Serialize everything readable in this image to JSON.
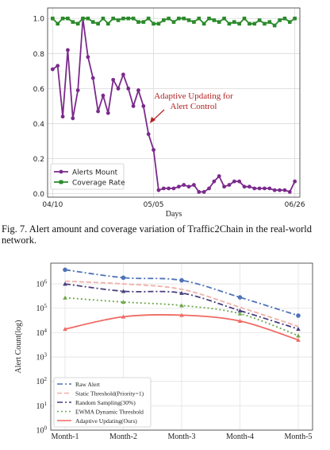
{
  "chart_data": [
    {
      "type": "line",
      "xlabel": "Days",
      "ylabel": "",
      "ylim": [
        0,
        1.0
      ],
      "grid": true,
      "legend_placement": "bottom-left",
      "x_ticks": [
        "04/10",
        "05/05",
        "06/26"
      ],
      "y_ticks": [
        "0.0",
        "0.2",
        "0.4",
        "0.6",
        "0.8",
        "1.0"
      ],
      "annotation": {
        "line1": "Adaptive Updating for",
        "line2": "Alert Control"
      },
      "series": [
        {
          "name": "Alerts Mount",
          "color": "#7b2a8c",
          "marker": "circle",
          "values": [
            0.71,
            0.73,
            0.44,
            0.82,
            0.43,
            0.59,
            1.0,
            0.78,
            0.66,
            0.47,
            0.56,
            0.46,
            0.65,
            0.6,
            0.68,
            0.6,
            0.5,
            0.59,
            0.5,
            0.34,
            0.25,
            0.02,
            0.03,
            0.03,
            0.03,
            0.04,
            0.05,
            0.04,
            0.05,
            0.01,
            0.01,
            0.03,
            0.07,
            0.1,
            0.04,
            0.05,
            0.07,
            0.07,
            0.04,
            0.04,
            0.03,
            0.03,
            0.03,
            0.03,
            0.02,
            0.02,
            0.02,
            0.01,
            0.07
          ]
        },
        {
          "name": "Coverage Rate",
          "color": "#2b8a2b",
          "marker": "square",
          "values": [
            1.0,
            0.97,
            1.0,
            1.0,
            0.98,
            0.97,
            1.0,
            1.0,
            0.98,
            0.97,
            1.0,
            0.97,
            1.0,
            0.99,
            1.0,
            1.0,
            1.0,
            0.98,
            0.98,
            1.0,
            0.97,
            0.97,
            0.99,
            1.0,
            0.98,
            1.0,
            1.0,
            0.99,
            0.98,
            1.0,
            0.97,
            1.0,
            0.99,
            0.98,
            1.0,
            0.97,
            0.98,
            0.97,
            1.0,
            0.97,
            0.97,
            0.99,
            0.97,
            0.98,
            0.96,
            0.99,
            1.0,
            0.98,
            1.0
          ]
        }
      ]
    },
    {
      "type": "line",
      "xlabel": "",
      "ylabel": "Alert Count(log)",
      "y_scale": "log",
      "ylim": [
        1,
        2000000
      ],
      "grid": true,
      "legend_placement": "bottom-left",
      "categories": [
        "Month-1",
        "Month-2",
        "Month-3",
        "Month-4",
        "Month-5"
      ],
      "y_ticks": [
        {
          "base": "10",
          "exp": "0"
        },
        {
          "base": "10",
          "exp": "1"
        },
        {
          "base": "10",
          "exp": "2"
        },
        {
          "base": "10",
          "exp": "3"
        },
        {
          "base": "10",
          "exp": "4"
        },
        {
          "base": "10",
          "exp": "5"
        },
        {
          "base": "10",
          "exp": "6"
        }
      ],
      "series": [
        {
          "name": "Raw Alert",
          "color": "#4f73b8",
          "dash": "dash-dot",
          "marker": "circle",
          "values": [
            3800000,
            1800000,
            1400000,
            280000,
            50000
          ]
        },
        {
          "name": "Static Threshold(Priority=1)",
          "color": "#f2b0a8",
          "dash": "dash",
          "marker": "none",
          "values": [
            1300000,
            1000000,
            600000,
            110000,
            18000
          ]
        },
        {
          "name": "Random Sampling(30%)",
          "color": "#4a3f7e",
          "dash": "dash-dot",
          "marker": "triangle",
          "values": [
            1000000,
            500000,
            420000,
            80000,
            14000
          ]
        },
        {
          "name": "EWMA Dynamic Threshold",
          "color": "#6ea84a",
          "dash": "dot",
          "marker": "triangle",
          "values": [
            270000,
            180000,
            130000,
            60000,
            7500
          ]
        },
        {
          "name": "Adaptive Updating(Ours)",
          "color": "#f06a62",
          "dash": "solid",
          "marker": "triangle",
          "values": [
            14000,
            45000,
            52000,
            30000,
            5000
          ]
        }
      ]
    }
  ],
  "caption": "Fig. 7.  Alert amount and coverage variation of Traffic2Chain in the real-world network."
}
